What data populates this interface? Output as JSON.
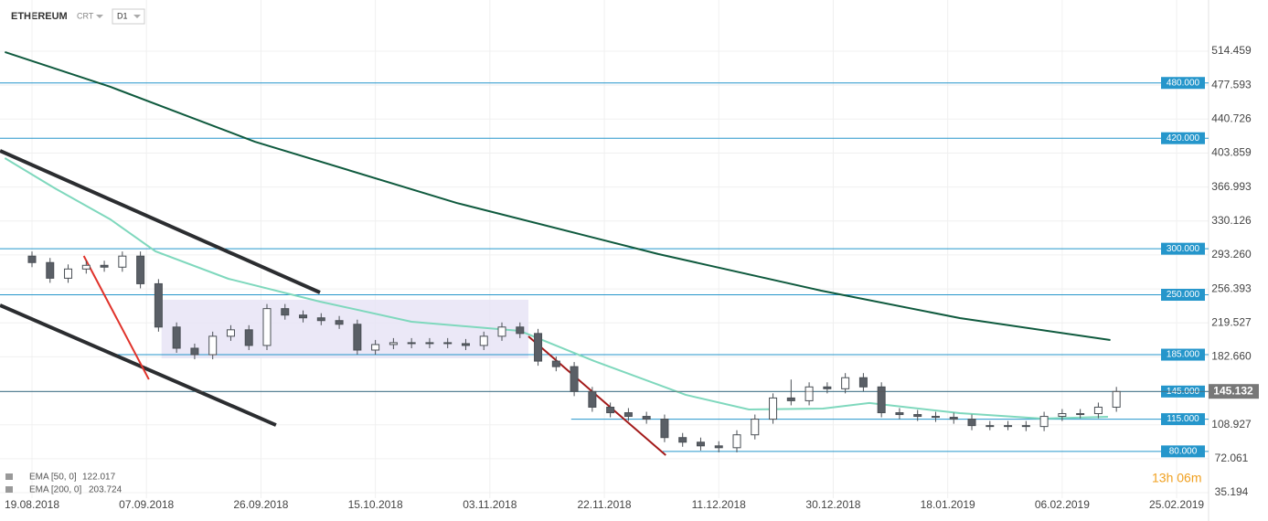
{
  "toolbar": {
    "symbol": "ETHEREUM",
    "mode": "CRT",
    "interval": "D1"
  },
  "countdown": "13h 06m",
  "chart_data": {
    "type": "candlestick",
    "xlim": [
      -5.31,
      195.3
    ],
    "ylim": [
      29.24,
      570.03
    ],
    "xticks": [
      {
        "value": 0,
        "label": "19.08.2018"
      },
      {
        "value": 19,
        "label": "07.09.2018"
      },
      {
        "value": 38,
        "label": "26.09.2018"
      },
      {
        "value": 57,
        "label": "15.10.2018"
      },
      {
        "value": 76,
        "label": "03.11.2018"
      },
      {
        "value": 95,
        "label": "22.11.2018"
      },
      {
        "value": 114,
        "label": "11.12.2018"
      },
      {
        "value": 133,
        "label": "30.12.2018"
      },
      {
        "value": 152,
        "label": "18.01.2019"
      },
      {
        "value": 171,
        "label": "06.02.2019"
      },
      {
        "value": 190,
        "label": "25.02.2019"
      }
    ],
    "yticks": [
      514.459,
      477.593,
      440.726,
      403.859,
      366.993,
      330.126,
      {
        "value": 293.26,
        "label": "293.260"
      },
      256.393,
      219.527,
      {
        "value": 182.66,
        "label": "182.660"
      },
      108.927,
      72.061,
      35.194
    ],
    "grid": true,
    "candles": {
      "x": [
        0,
        3,
        6,
        9,
        12,
        15,
        18,
        21,
        24,
        27,
        30,
        33,
        36,
        39,
        42,
        45,
        48,
        51,
        54,
        57,
        60,
        63,
        66,
        69,
        72,
        75,
        78,
        81,
        84,
        87,
        90,
        93,
        96,
        99,
        102,
        105,
        108,
        111,
        114,
        117,
        120,
        123,
        126,
        129,
        132,
        135,
        138,
        141,
        144,
        147,
        150,
        153,
        156,
        159,
        162,
        165,
        168,
        171,
        174,
        177,
        180
      ],
      "open": [
        292,
        285,
        268,
        278,
        282,
        280,
        292,
        262,
        215,
        192,
        185,
        205,
        212,
        195,
        235,
        228,
        225,
        222,
        218,
        190,
        196,
        198,
        197,
        198,
        197,
        195,
        205,
        215,
        208,
        178,
        172,
        145,
        128,
        122,
        118,
        115,
        95,
        90,
        86,
        84,
        98,
        115,
        138,
        135,
        150,
        148,
        160,
        150,
        122,
        120,
        118,
        117,
        115,
        108,
        108,
        108,
        107,
        118,
        121,
        121,
        128
      ],
      "high": [
        297,
        290,
        283,
        287,
        287,
        297,
        297,
        267,
        220,
        197,
        210,
        217,
        217,
        240,
        240,
        233,
        230,
        227,
        223,
        201,
        203,
        203,
        203,
        203,
        202,
        210,
        220,
        220,
        213,
        183,
        177,
        150,
        133,
        127,
        123,
        120,
        100,
        95,
        91,
        103,
        120,
        143,
        158,
        155,
        155,
        165,
        165,
        155,
        127,
        125,
        123,
        122,
        120,
        113,
        113,
        113,
        123,
        126,
        126,
        133,
        150
      ],
      "low": [
        280,
        263,
        263,
        273,
        275,
        275,
        257,
        210,
        187,
        180,
        180,
        200,
        190,
        190,
        223,
        220,
        217,
        213,
        185,
        185,
        191,
        192,
        192,
        192,
        190,
        190,
        200,
        203,
        173,
        167,
        140,
        123,
        117,
        113,
        110,
        90,
        85,
        81,
        79,
        79,
        93,
        110,
        130,
        130,
        143,
        143,
        145,
        117,
        115,
        113,
        112,
        110,
        103,
        103,
        103,
        102,
        102,
        113,
        116,
        116,
        123
      ],
      "close": [
        285,
        268,
        278,
        282,
        280,
        292,
        262,
        215,
        192,
        185,
        205,
        212,
        195,
        235,
        228,
        225,
        222,
        218,
        190,
        196,
        198,
        197,
        198,
        197,
        195,
        205,
        215,
        208,
        178,
        172,
        145,
        128,
        122,
        118,
        115,
        95,
        90,
        86,
        84,
        98,
        115,
        138,
        135,
        150,
        148,
        160,
        150,
        122,
        120,
        118,
        117,
        115,
        108,
        108,
        108,
        107,
        118,
        121,
        121,
        128,
        145
      ],
      "up_color": "#ffffff",
      "down_color": "#5a5f66",
      "edge_color": "#4a4f55"
    },
    "series": [
      {
        "name": "EMA [50, 0]",
        "legend_value": 122.017,
        "color": "#7fd8bd",
        "x": [
          -4.5,
          3.8,
          13,
          20.5,
          32.6,
          47.8,
          63,
          81,
          93.3,
          108.5,
          119,
          131.3,
          139,
          154,
          167.7,
          178.6
        ],
        "values": [
          398.4,
          365.6,
          331.9,
          297.2,
          267.4,
          242.6,
          220.8,
          210.8,
          178.1,
          141.4,
          125.5,
          126.5,
          132.5,
          121.5,
          115.6,
          117.6
        ]
      },
      {
        "name": "EMA [200, 0]",
        "legend_value": 203.724,
        "color": "#0f5a3e",
        "x": [
          -4.5,
          13,
          37,
          70.5,
          104,
          131,
          154,
          179
        ],
        "values": [
          513.5,
          475.8,
          416.2,
          349.7,
          294.2,
          254.5,
          224.7,
          200.9
        ]
      }
    ],
    "levels": [
      {
        "value": 480,
        "label": "480.000",
        "from": -5.31
      },
      {
        "value": 420,
        "label": "420.000",
        "from": -5.31
      },
      {
        "value": 300,
        "label": "300.000",
        "from": -5.31
      },
      {
        "value": 250,
        "label": "250.000",
        "from": -5.31
      },
      {
        "value": 185,
        "label": "185.000",
        "from": 13.7
      },
      {
        "value": 145,
        "label": "145.000",
        "from": -5.31
      },
      {
        "value": 115,
        "label": "115.000",
        "from": 89.5
      },
      {
        "value": 80,
        "label": "80.000",
        "from": 104.7
      }
    ],
    "level_color": "#2596cb",
    "last_price": 145.132,
    "drawings": [
      {
        "color": "#2b2d30",
        "points": [
          [
            -5.3,
            406.3
          ],
          [
            47.8,
            252.5
          ]
        ]
      },
      {
        "color": "#2b2d30",
        "points": [
          [
            -5.3,
            238.6
          ],
          [
            40.5,
            108.6
          ]
        ]
      },
      {
        "color": "#e0332b",
        "points": [
          [
            8.6,
            292.2
          ],
          [
            19.4,
            158.2
          ]
        ]
      },
      {
        "color": "#a31a1a",
        "points": [
          [
            82.4,
            204.9
          ],
          [
            105.2,
            75.9
          ]
        ]
      }
    ],
    "zone": {
      "x": [
        21.5,
        82.4
      ],
      "y": [
        181.1,
        244.6
      ],
      "color": "#e6e2f5"
    }
  }
}
